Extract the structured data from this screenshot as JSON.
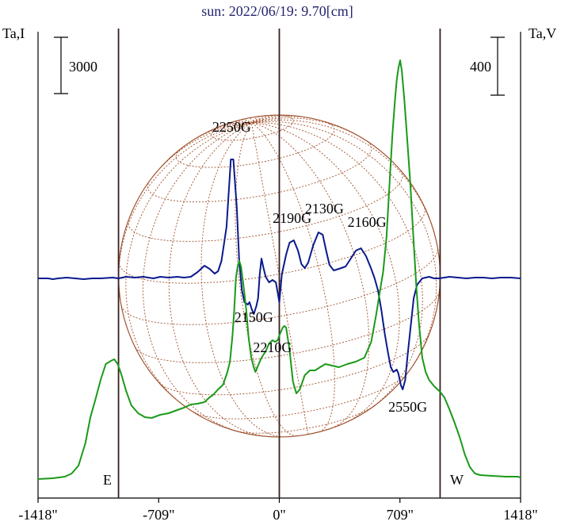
{
  "chart_data": {
    "type": "line",
    "title": "sun: 2022/06/19: 9.70[cm]",
    "y_left_label": "Ta,I",
    "y_right_label": "Ta,V",
    "scale_left": "3000",
    "scale_right": "400",
    "limb_labels": {
      "east": "E",
      "west": "W"
    },
    "xlim": [
      -1418,
      1418
    ],
    "x_ticks": [
      {
        "value": -1418,
        "label": "-1418\""
      },
      {
        "value": -709,
        "label": "-709\""
      },
      {
        "value": 0,
        "label": "0\""
      },
      {
        "value": 709,
        "label": "709\""
      },
      {
        "value": 1418,
        "label": "1418\""
      }
    ],
    "vertical_lines": [
      -945,
      0,
      945
    ],
    "solar_radius_arcsec": 945,
    "series": [
      {
        "id": "I",
        "color": "#0a1a8c",
        "note": "Stokes I (left scale)",
        "points": [
          [
            -1418,
            0
          ],
          [
            -1360,
            0
          ],
          [
            -1330,
            -1
          ],
          [
            -1300,
            0
          ],
          [
            -1250,
            1
          ],
          [
            -1200,
            0
          ],
          [
            -1150,
            -1
          ],
          [
            -1100,
            0
          ],
          [
            -1050,
            0
          ],
          [
            -980,
            1
          ],
          [
            -945,
            0
          ],
          [
            -900,
            2
          ],
          [
            -850,
            1
          ],
          [
            -800,
            2
          ],
          [
            -740,
            0
          ],
          [
            -700,
            2
          ],
          [
            -650,
            1
          ],
          [
            -600,
            2
          ],
          [
            -560,
            1
          ],
          [
            -520,
            2
          ],
          [
            -480,
            8
          ],
          [
            -440,
            16
          ],
          [
            -410,
            12
          ],
          [
            -380,
            6
          ],
          [
            -360,
            9
          ],
          [
            -340,
            22
          ],
          [
            -310,
            65
          ],
          [
            -285,
            150
          ],
          [
            -270,
            150
          ],
          [
            -250,
            90
          ],
          [
            -235,
            20
          ],
          [
            -220,
            -15
          ],
          [
            -205,
            -30
          ],
          [
            -185,
            -33
          ],
          [
            -175,
            -30
          ],
          [
            -160,
            -40
          ],
          [
            -150,
            -45
          ],
          [
            -135,
            -35
          ],
          [
            -125,
            -25
          ],
          [
            -115,
            5
          ],
          [
            -105,
            25
          ],
          [
            -95,
            15
          ],
          [
            -80,
            2
          ],
          [
            -60,
            -5
          ],
          [
            -40,
            -2
          ],
          [
            -20,
            -5
          ],
          [
            0,
            -30
          ],
          [
            15,
            5
          ],
          [
            40,
            30
          ],
          [
            60,
            45
          ],
          [
            85,
            48
          ],
          [
            110,
            35
          ],
          [
            130,
            18
          ],
          [
            150,
            13
          ],
          [
            170,
            20
          ],
          [
            200,
            42
          ],
          [
            230,
            58
          ],
          [
            255,
            55
          ],
          [
            275,
            35
          ],
          [
            295,
            17
          ],
          [
            320,
            10
          ],
          [
            350,
            12
          ],
          [
            390,
            15
          ],
          [
            420,
            25
          ],
          [
            450,
            35
          ],
          [
            480,
            38
          ],
          [
            510,
            28
          ],
          [
            540,
            12
          ],
          [
            560,
            0
          ],
          [
            580,
            -15
          ],
          [
            600,
            -40
          ],
          [
            620,
            -70
          ],
          [
            640,
            -95
          ],
          [
            655,
            -112
          ],
          [
            670,
            -118
          ],
          [
            690,
            -115
          ],
          [
            700,
            -120
          ],
          [
            715,
            -135
          ],
          [
            725,
            -140
          ],
          [
            740,
            -128
          ],
          [
            755,
            -95
          ],
          [
            775,
            -55
          ],
          [
            790,
            -25
          ],
          [
            810,
            -8
          ],
          [
            840,
            0
          ],
          [
            880,
            2
          ],
          [
            910,
            0
          ],
          [
            940,
            0
          ],
          [
            970,
            1
          ],
          [
            1000,
            2
          ],
          [
            1050,
            1
          ],
          [
            1100,
            0
          ],
          [
            1150,
            1
          ],
          [
            1200,
            1
          ],
          [
            1250,
            0
          ],
          [
            1300,
            1
          ],
          [
            1360,
            1
          ],
          [
            1418,
            0
          ]
        ]
      },
      {
        "id": "V",
        "color": "#1a9a1a",
        "note": "Stokes V (right scale)",
        "points": [
          [
            -1418,
            -253
          ],
          [
            -1330,
            -252
          ],
          [
            -1260,
            -250
          ],
          [
            -1220,
            -246
          ],
          [
            -1180,
            -236
          ],
          [
            -1140,
            -208
          ],
          [
            -1110,
            -175
          ],
          [
            -1080,
            -152
          ],
          [
            -1050,
            -128
          ],
          [
            -1020,
            -108
          ],
          [
            -990,
            -104
          ],
          [
            -970,
            -102
          ],
          [
            -950,
            -108
          ],
          [
            -930,
            -120
          ],
          [
            -900,
            -142
          ],
          [
            -870,
            -160
          ],
          [
            -830,
            -170
          ],
          [
            -790,
            -175
          ],
          [
            -750,
            -176
          ],
          [
            -700,
            -172
          ],
          [
            -650,
            -170
          ],
          [
            -600,
            -166
          ],
          [
            -560,
            -163
          ],
          [
            -520,
            -159
          ],
          [
            -480,
            -158
          ],
          [
            -440,
            -156
          ],
          [
            -410,
            -150
          ],
          [
            -390,
            -147
          ],
          [
            -360,
            -140
          ],
          [
            -330,
            -134
          ],
          [
            -305,
            -118
          ],
          [
            -290,
            -105
          ],
          [
            -275,
            -72
          ],
          [
            -265,
            -40
          ],
          [
            -255,
            0
          ],
          [
            -245,
            15
          ],
          [
            -235,
            22
          ],
          [
            -225,
            15
          ],
          [
            -210,
            -10
          ],
          [
            -195,
            -38
          ],
          [
            -180,
            -75
          ],
          [
            -165,
            -100
          ],
          [
            -150,
            -112
          ],
          [
            -140,
            -118
          ],
          [
            -125,
            -110
          ],
          [
            -105,
            -100
          ],
          [
            -80,
            -92
          ],
          [
            -60,
            -82
          ],
          [
            -40,
            -78
          ],
          [
            -25,
            -80
          ],
          [
            -10,
            -78
          ],
          [
            0,
            -72
          ],
          [
            20,
            -62
          ],
          [
            30,
            -60
          ],
          [
            40,
            -62
          ],
          [
            60,
            -90
          ],
          [
            80,
            -130
          ],
          [
            100,
            -145
          ],
          [
            120,
            -140
          ],
          [
            150,
            -122
          ],
          [
            180,
            -116
          ],
          [
            210,
            -116
          ],
          [
            240,
            -112
          ],
          [
            270,
            -108
          ],
          [
            310,
            -110
          ],
          [
            350,
            -112
          ],
          [
            400,
            -108
          ],
          [
            450,
            -105
          ],
          [
            500,
            -100
          ],
          [
            540,
            -80
          ],
          [
            570,
            -45
          ],
          [
            590,
            -18
          ],
          [
            610,
            8
          ],
          [
            630,
            52
          ],
          [
            650,
            128
          ],
          [
            665,
            182
          ],
          [
            680,
            225
          ],
          [
            690,
            250
          ],
          [
            700,
            265
          ],
          [
            710,
            275
          ],
          [
            720,
            262
          ],
          [
            735,
            225
          ],
          [
            750,
            180
          ],
          [
            770,
            120
          ],
          [
            790,
            45
          ],
          [
            805,
            -10
          ],
          [
            820,
            -55
          ],
          [
            840,
            -100
          ],
          [
            860,
            -118
          ],
          [
            880,
            -128
          ],
          [
            910,
            -136
          ],
          [
            945,
            -143
          ],
          [
            970,
            -150
          ],
          [
            1000,
            -165
          ],
          [
            1030,
            -182
          ],
          [
            1060,
            -200
          ],
          [
            1090,
            -222
          ],
          [
            1120,
            -238
          ],
          [
            1150,
            -246
          ],
          [
            1180,
            -248
          ],
          [
            1250,
            -249
          ],
          [
            1330,
            -250
          ],
          [
            1400,
            -250
          ],
          [
            1418,
            -251
          ]
        ]
      }
    ],
    "annotations": [
      {
        "text": "2250G",
        "x": -280,
        "y": 185
      },
      {
        "text": "2190G",
        "x": 75,
        "y": 70
      },
      {
        "text": "2130G",
        "x": 265,
        "y": 82
      },
      {
        "text": "2160G",
        "x": 515,
        "y": 65
      },
      {
        "text": "2150G",
        "x": -150,
        "y": -55
      },
      {
        "text": "2210G",
        "x": -40,
        "y": -93
      },
      {
        "text": "2550G",
        "x": 755,
        "y": -168
      }
    ],
    "colors": {
      "title": "#24246e",
      "disk": "#a0522d",
      "axis": "#000000",
      "limb_line": "#3a1f1f"
    }
  }
}
